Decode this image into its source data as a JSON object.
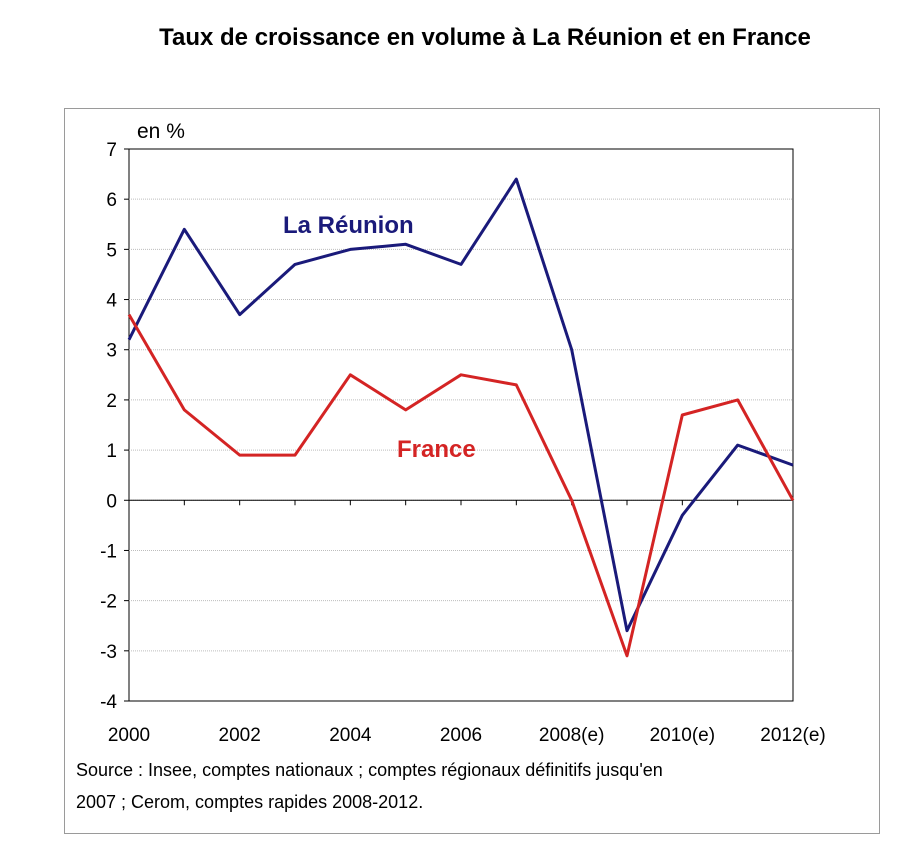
{
  "chart_data": {
    "type": "line",
    "title": "Taux de croissance en volume à La Réunion et en France",
    "ylabel": "en %",
    "ylim": [
      -4,
      7
    ],
    "yticks": [
      7,
      6,
      5,
      4,
      3,
      2,
      1,
      0,
      -1,
      -2,
      -3,
      -4
    ],
    "x": [
      2000,
      2001,
      2002,
      2003,
      2004,
      2005,
      2006,
      2007,
      2008,
      2009,
      2010,
      2011,
      2012
    ],
    "xtick_labels": [
      "2000",
      "2002",
      "2004",
      "2006",
      "2008(e)",
      "2010(e)",
      "2012(e)"
    ],
    "grid": true,
    "series": [
      {
        "name": "La Réunion",
        "color": "#1a1a7a",
        "values": [
          3.2,
          5.4,
          3.7,
          4.7,
          5.0,
          5.1,
          4.7,
          6.4,
          3.0,
          -2.6,
          -0.3,
          1.1,
          0.7
        ]
      },
      {
        "name": "France",
        "color": "#d42424",
        "values": [
          3.7,
          1.8,
          0.9,
          0.9,
          2.5,
          1.8,
          2.5,
          2.3,
          0.0,
          -3.1,
          1.7,
          2.0,
          0.0
        ]
      }
    ]
  },
  "source": {
    "line1": "Source : Insee, comptes nationaux ; comptes régionaux définitifs jusqu'en",
    "line2": "2007 ; Cerom, comptes rapides 2008-2012."
  }
}
